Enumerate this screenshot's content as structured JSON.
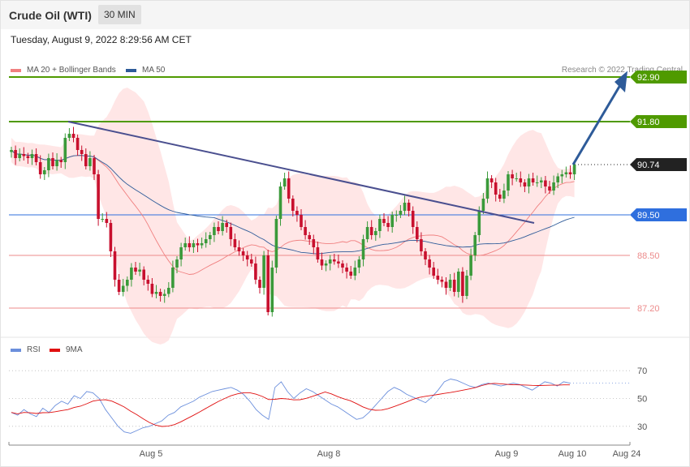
{
  "header": {
    "title": "Crude Oil (WTI)",
    "timeframe": "30 MIN"
  },
  "timestamp": "Tuesday, August 9, 2022 8:29:56 AM CET",
  "legend": {
    "ma20_label": "MA 20 + Bollinger Bands",
    "ma50_label": "MA 50",
    "rsi_label": "RSI",
    "rsi_ma_label": "9MA"
  },
  "credit": "Research © 2022 Trading Central",
  "colors": {
    "up": "#3a9a3a",
    "down": "#c8102e",
    "ma20": "#f08080",
    "ma50": "#2e5b99",
    "band": "#ffdede",
    "target": "#4f9a00",
    "support": "#ec8b8b",
    "current": "#222222",
    "pivot": "#2f6fde",
    "rsi": "#6b8fdc",
    "rsi_ma": "#e01010"
  },
  "chart_data": [
    {
      "type": "candlestick",
      "title": "Crude Oil (WTI)",
      "ylim": [
        86.4,
        93.6
      ],
      "x_ticks": [
        "Aug 5",
        "Aug 8",
        "Aug 9",
        "Aug 10",
        "Aug 24"
      ],
      "levels": [
        {
          "value": 92.9,
          "label": "92.90",
          "kind": "target"
        },
        {
          "value": 91.8,
          "label": "91.80",
          "kind": "target"
        },
        {
          "value": 90.74,
          "label": "90.74",
          "kind": "current"
        },
        {
          "value": 89.5,
          "label": "89.50",
          "kind": "pivot"
        },
        {
          "value": 88.5,
          "label": "88.50",
          "kind": "support"
        },
        {
          "value": 87.2,
          "label": "87.20",
          "kind": "support"
        }
      ],
      "close": [
        91.1,
        90.9,
        91.0,
        90.95,
        90.9,
        91.0,
        90.8,
        90.5,
        90.6,
        90.9,
        90.7,
        90.85,
        90.8,
        91.4,
        91.5,
        91.4,
        91.1,
        91.0,
        90.7,
        90.9,
        90.5,
        89.4,
        89.4,
        89.3,
        88.6,
        87.9,
        87.6,
        87.75,
        87.9,
        88.2,
        88.1,
        88.15,
        87.9,
        87.8,
        87.55,
        87.6,
        87.5,
        87.55,
        87.7,
        88.2,
        88.4,
        88.7,
        88.8,
        88.7,
        88.8,
        88.75,
        88.8,
        88.9,
        89.0,
        89.2,
        89.1,
        89.3,
        89.2,
        88.9,
        88.7,
        88.6,
        88.5,
        88.4,
        88.3,
        87.9,
        87.7,
        88.5,
        87.1,
        88.2,
        89.4,
        90.2,
        90.4,
        89.9,
        89.6,
        89.5,
        89.2,
        89.0,
        88.9,
        88.7,
        88.4,
        88.25,
        88.3,
        88.4,
        88.35,
        88.3,
        88.2,
        88.1,
        88.0,
        88.2,
        88.4,
        88.9,
        89.2,
        89.0,
        89.1,
        89.4,
        89.3,
        89.2,
        89.5,
        89.5,
        89.6,
        89.8,
        89.6,
        89.2,
        88.9,
        88.6,
        88.4,
        88.2,
        88.0,
        87.9,
        87.85,
        87.7,
        87.9,
        87.6,
        88.1,
        87.5,
        88.0,
        88.5,
        89.0,
        89.6,
        89.9,
        90.4,
        90.3,
        90.0,
        89.9,
        90.1,
        90.5,
        90.4,
        90.4,
        90.3,
        90.2,
        90.4,
        90.3,
        90.3,
        90.35,
        90.2,
        90.1,
        90.3,
        90.45,
        90.5,
        90.55,
        90.5,
        90.74
      ]
    },
    {
      "type": "line",
      "title": "RSI",
      "ylim": [
        20,
        80
      ],
      "y_ticks": [
        30,
        50,
        70
      ],
      "x_ticks": [
        "Aug 5",
        "Aug 8",
        "Aug 9",
        "Aug 10",
        "Aug 24"
      ],
      "series": [
        {
          "name": "RSI",
          "values": [
            40,
            38,
            42,
            39,
            37,
            43,
            40,
            45,
            48,
            46,
            52,
            50,
            55,
            54,
            50,
            42,
            36,
            30,
            26,
            25,
            27,
            29,
            30,
            32,
            34,
            38,
            40,
            44,
            46,
            48,
            51,
            53,
            55,
            56,
            57,
            58,
            56,
            53,
            48,
            42,
            38,
            35,
            58,
            62,
            55,
            50,
            54,
            57,
            55,
            52,
            49,
            46,
            44,
            41,
            38,
            35,
            36,
            40,
            45,
            50,
            55,
            58,
            56,
            53,
            51,
            49,
            47,
            51,
            56,
            62,
            64,
            63,
            61,
            59,
            58,
            60,
            61,
            60,
            59,
            60,
            61,
            60,
            58,
            56,
            59,
            62,
            61,
            59,
            62,
            61
          ],
          "pattern": [
            [
              0,
              40
            ],
            [
              5,
              38
            ],
            [
              10,
              42
            ],
            [
              15,
              36
            ],
            [
              20,
              44
            ],
            [
              25,
              47
            ],
            [
              30,
              51
            ],
            [
              35,
              55
            ],
            [
              40,
              54
            ],
            [
              45,
              42
            ],
            [
              50,
              30
            ],
            [
              55,
              26
            ],
            [
              60,
              30
            ],
            [
              65,
              34
            ],
            [
              70,
              38
            ],
            [
              75,
              36
            ],
            [
              80,
              44
            ],
            [
              85,
              40
            ],
            [
              90,
              43
            ],
            [
              95,
              50
            ],
            [
              100,
              58
            ],
            [
              105,
              62
            ],
            [
              110,
              48
            ],
            [
              115,
              58
            ],
            [
              120,
              55
            ],
            [
              125,
              60
            ],
            [
              130,
              52
            ],
            [
              135,
              56
            ],
            [
              140,
              50
            ],
            [
              145,
              45
            ],
            [
              150,
              55
            ],
            [
              155,
              48
            ],
            [
              160,
              62
            ],
            [
              165,
              60
            ],
            [
              170,
              58
            ],
            [
              175,
              50
            ]
          ]
        },
        {
          "name": "9MA"
        }
      ]
    }
  ]
}
